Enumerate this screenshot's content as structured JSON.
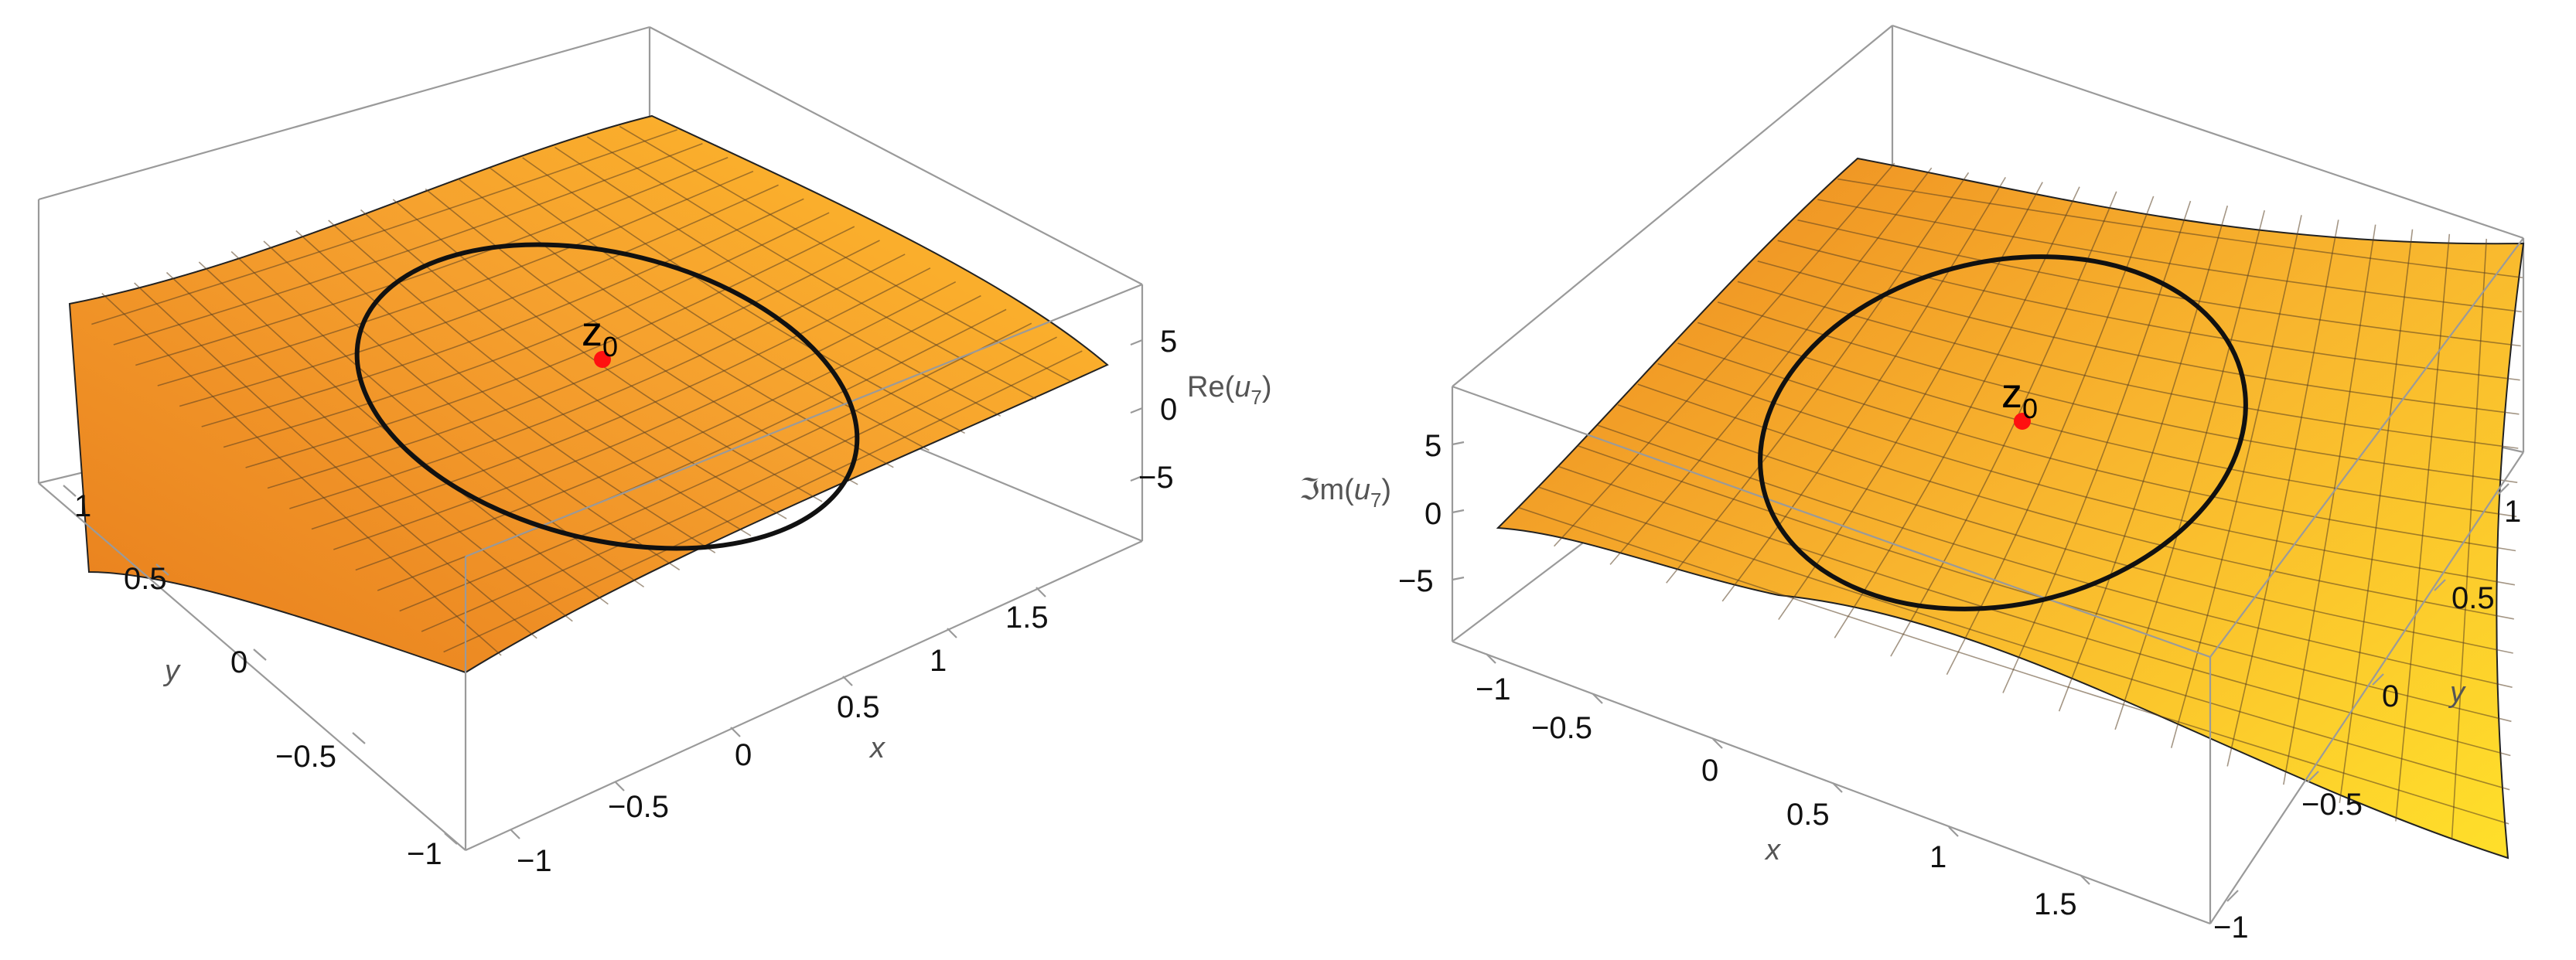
{
  "chart_data": [
    {
      "type": "surface3d",
      "zlabel_prefix": "Re(",
      "zlabel_var": "u",
      "zlabel_sub": "7",
      "zlabel_suffix": ")",
      "xlabel": "x",
      "ylabel": "y",
      "xlim": [
        -1,
        2
      ],
      "ylim": [
        -1,
        1.25
      ],
      "zlim": [
        -8,
        8
      ],
      "x_ticks": [
        "−1",
        "−0.5",
        "0",
        "0.5",
        "1",
        "1.5"
      ],
      "y_ticks": [
        "−1",
        "−0.5",
        "0",
        "0.5",
        "1"
      ],
      "z_ticks": [
        "5",
        "0",
        "−5"
      ],
      "point": {
        "label": "z",
        "sub": "0",
        "x": 0.5,
        "y": 0.25,
        "color": "#ff0000"
      },
      "curve": {
        "type": "circle",
        "center": [
          0.5,
          0.25
        ],
        "radius": 0.9,
        "color": "#000000"
      },
      "surface_color_low": "#f29b26",
      "surface_color_high": "#ffc31f"
    },
    {
      "type": "surface3d",
      "zlabel_prefix": "ℑm(",
      "zlabel_var": "u",
      "zlabel_sub": "7",
      "zlabel_suffix": ")",
      "xlabel": "x",
      "ylabel": "y",
      "xlim": [
        -1.25,
        2
      ],
      "ylim": [
        -1,
        1.25
      ],
      "zlim": [
        -8,
        8
      ],
      "x_ticks": [
        "−1",
        "−0.5",
        "0",
        "0.5",
        "1",
        "1.5"
      ],
      "y_ticks": [
        "−1",
        "−0.5",
        "0",
        "0.5",
        "1"
      ],
      "z_ticks": [
        "5",
        "0",
        "−5"
      ],
      "point": {
        "label": "z",
        "sub": "0",
        "x": 0.5,
        "y": 0.25,
        "color": "#ff0000"
      },
      "curve": {
        "type": "circle",
        "center": [
          0.5,
          0.25
        ],
        "radius": 0.9,
        "color": "#000000"
      },
      "surface_color_low": "#f08e22",
      "surface_color_high": "#ffdd22"
    }
  ]
}
